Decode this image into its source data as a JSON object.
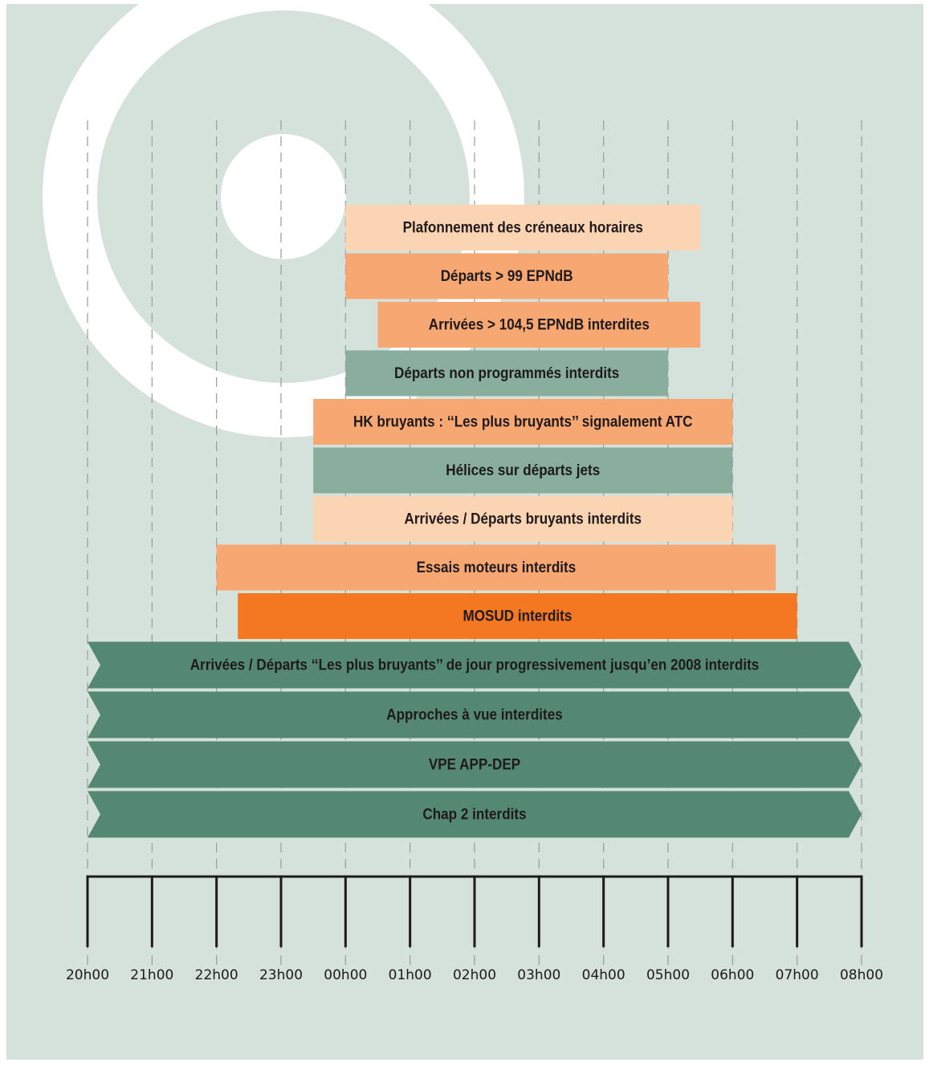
{
  "chart_data": {
    "type": "timeline",
    "xlim": [
      20,
      32
    ],
    "xticks": [
      {
        "value": 20,
        "label": "20h00"
      },
      {
        "value": 21,
        "label": "21h00"
      },
      {
        "value": 22,
        "label": "22h00"
      },
      {
        "value": 23,
        "label": "23h00"
      },
      {
        "value": 24,
        "label": "00h00"
      },
      {
        "value": 25,
        "label": "01h00"
      },
      {
        "value": 26,
        "label": "02h00"
      },
      {
        "value": 27,
        "label": "03h00"
      },
      {
        "value": 28,
        "label": "04h00"
      },
      {
        "value": 29,
        "label": "05h00"
      },
      {
        "value": 30,
        "label": "06h00"
      },
      {
        "value": 31,
        "label": "07h00"
      },
      {
        "value": 32,
        "label": "08h00"
      }
    ],
    "grid": true,
    "tasks": [
      {
        "name": "Plafonnement des créneaux horaires",
        "start": 24,
        "end": 29.5,
        "color": "#fbd4b4"
      },
      {
        "name": "Départs > 99 EPNdB",
        "start": 24,
        "end": 29,
        "color": "#f6a772"
      },
      {
        "name": "Arrivées > 104,5 EPNdB interdites",
        "start": 24.5,
        "end": 29.5,
        "color": "#f6a772"
      },
      {
        "name": "Départs non programmés interdits",
        "start": 24,
        "end": 29,
        "color": "#8aae9d"
      },
      {
        "name": "HK bruyants : ‘‘Les plus bruyants’’ signalement ATC",
        "start": 23.5,
        "end": 30,
        "color": "#f6a772"
      },
      {
        "name": "Hélices sur départs jets",
        "start": 23.5,
        "end": 30,
        "color": "#8aae9d"
      },
      {
        "name": "Arrivées / Départs bruyants interdits",
        "start": 23.5,
        "end": 30,
        "color": "#fbd4b4"
      },
      {
        "name": "Essais moteurs interdits",
        "start": 22,
        "end": 30.67,
        "color": "#f6a772"
      },
      {
        "name": "MOSUD interdits",
        "start": 22.33,
        "end": 31,
        "color": "#f47721"
      },
      {
        "name": "Arrivées / Départs ‘‘Les plus bruyants’’ de jour progressivement jusqu’en 2008 interdits",
        "start": 20,
        "end": 32,
        "color": "#558872",
        "shape": "arrow"
      },
      {
        "name": "Approches à vue interdites",
        "start": 20,
        "end": 32,
        "color": "#558872",
        "shape": "arrow"
      },
      {
        "name": "VPE APP-DEP",
        "start": 20,
        "end": 32,
        "color": "#558872",
        "shape": "arrow"
      },
      {
        "name": "Chap 2 interdits",
        "start": 20,
        "end": 32,
        "color": "#558872",
        "shape": "arrow"
      }
    ]
  }
}
